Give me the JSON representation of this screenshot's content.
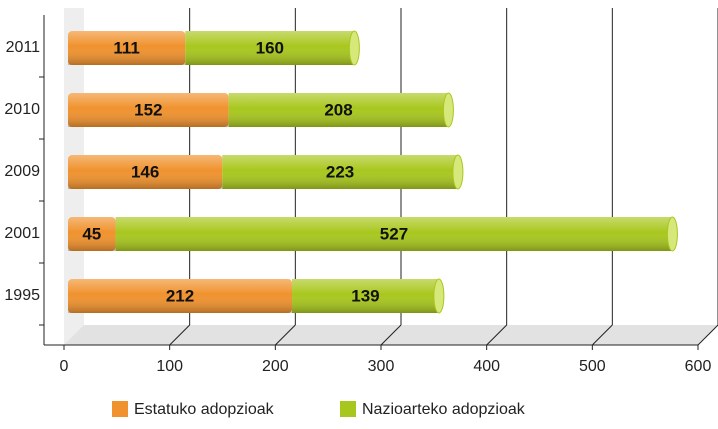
{
  "chart_data": {
    "type": "bar",
    "orientation": "horizontal",
    "stacked": true,
    "categories": [
      "2011",
      "2010",
      "2009",
      "2001",
      "1995"
    ],
    "series": [
      {
        "name": "Estatuko adopzioak",
        "color": "#f0922e",
        "values": [
          111,
          152,
          146,
          45,
          212
        ]
      },
      {
        "name": "Nazioarteko adopzioak",
        "color": "#a8c71e",
        "values": [
          160,
          208,
          223,
          527,
          139
        ]
      }
    ],
    "xlim": [
      0,
      600
    ],
    "xticks": [
      0,
      100,
      200,
      300,
      400,
      500,
      600
    ],
    "grid": true,
    "legend": "bottom"
  }
}
